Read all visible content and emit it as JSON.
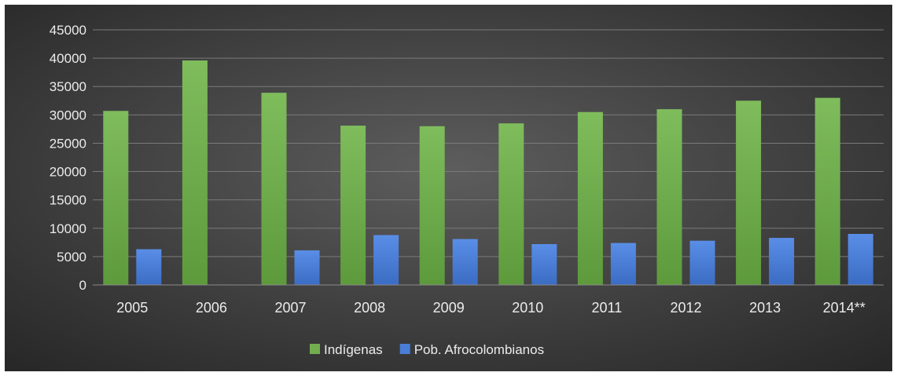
{
  "chart_data": {
    "type": "bar",
    "title": "",
    "xlabel": "",
    "ylabel": "",
    "categories": [
      "2005",
      "2006",
      "2007",
      "2008",
      "2009",
      "2010",
      "2011",
      "2012",
      "2013",
      "2014**"
    ],
    "series": [
      {
        "name": "Indígenas",
        "color": "#72ad4f",
        "values": [
          30700,
          39600,
          33900,
          28100,
          28000,
          28500,
          30500,
          31000,
          32500,
          33000
        ]
      },
      {
        "name": "Pob. Afrocolombianos",
        "color": "#4a7ed6",
        "values": [
          6300,
          0,
          6100,
          8800,
          8100,
          7200,
          7400,
          7800,
          8300,
          9000
        ]
      }
    ],
    "ylim": [
      0,
      45000
    ],
    "yticks": [
      0,
      5000,
      10000,
      15000,
      20000,
      25000,
      30000,
      35000,
      40000,
      45000
    ],
    "grid": true,
    "legend_position": "bottom"
  }
}
